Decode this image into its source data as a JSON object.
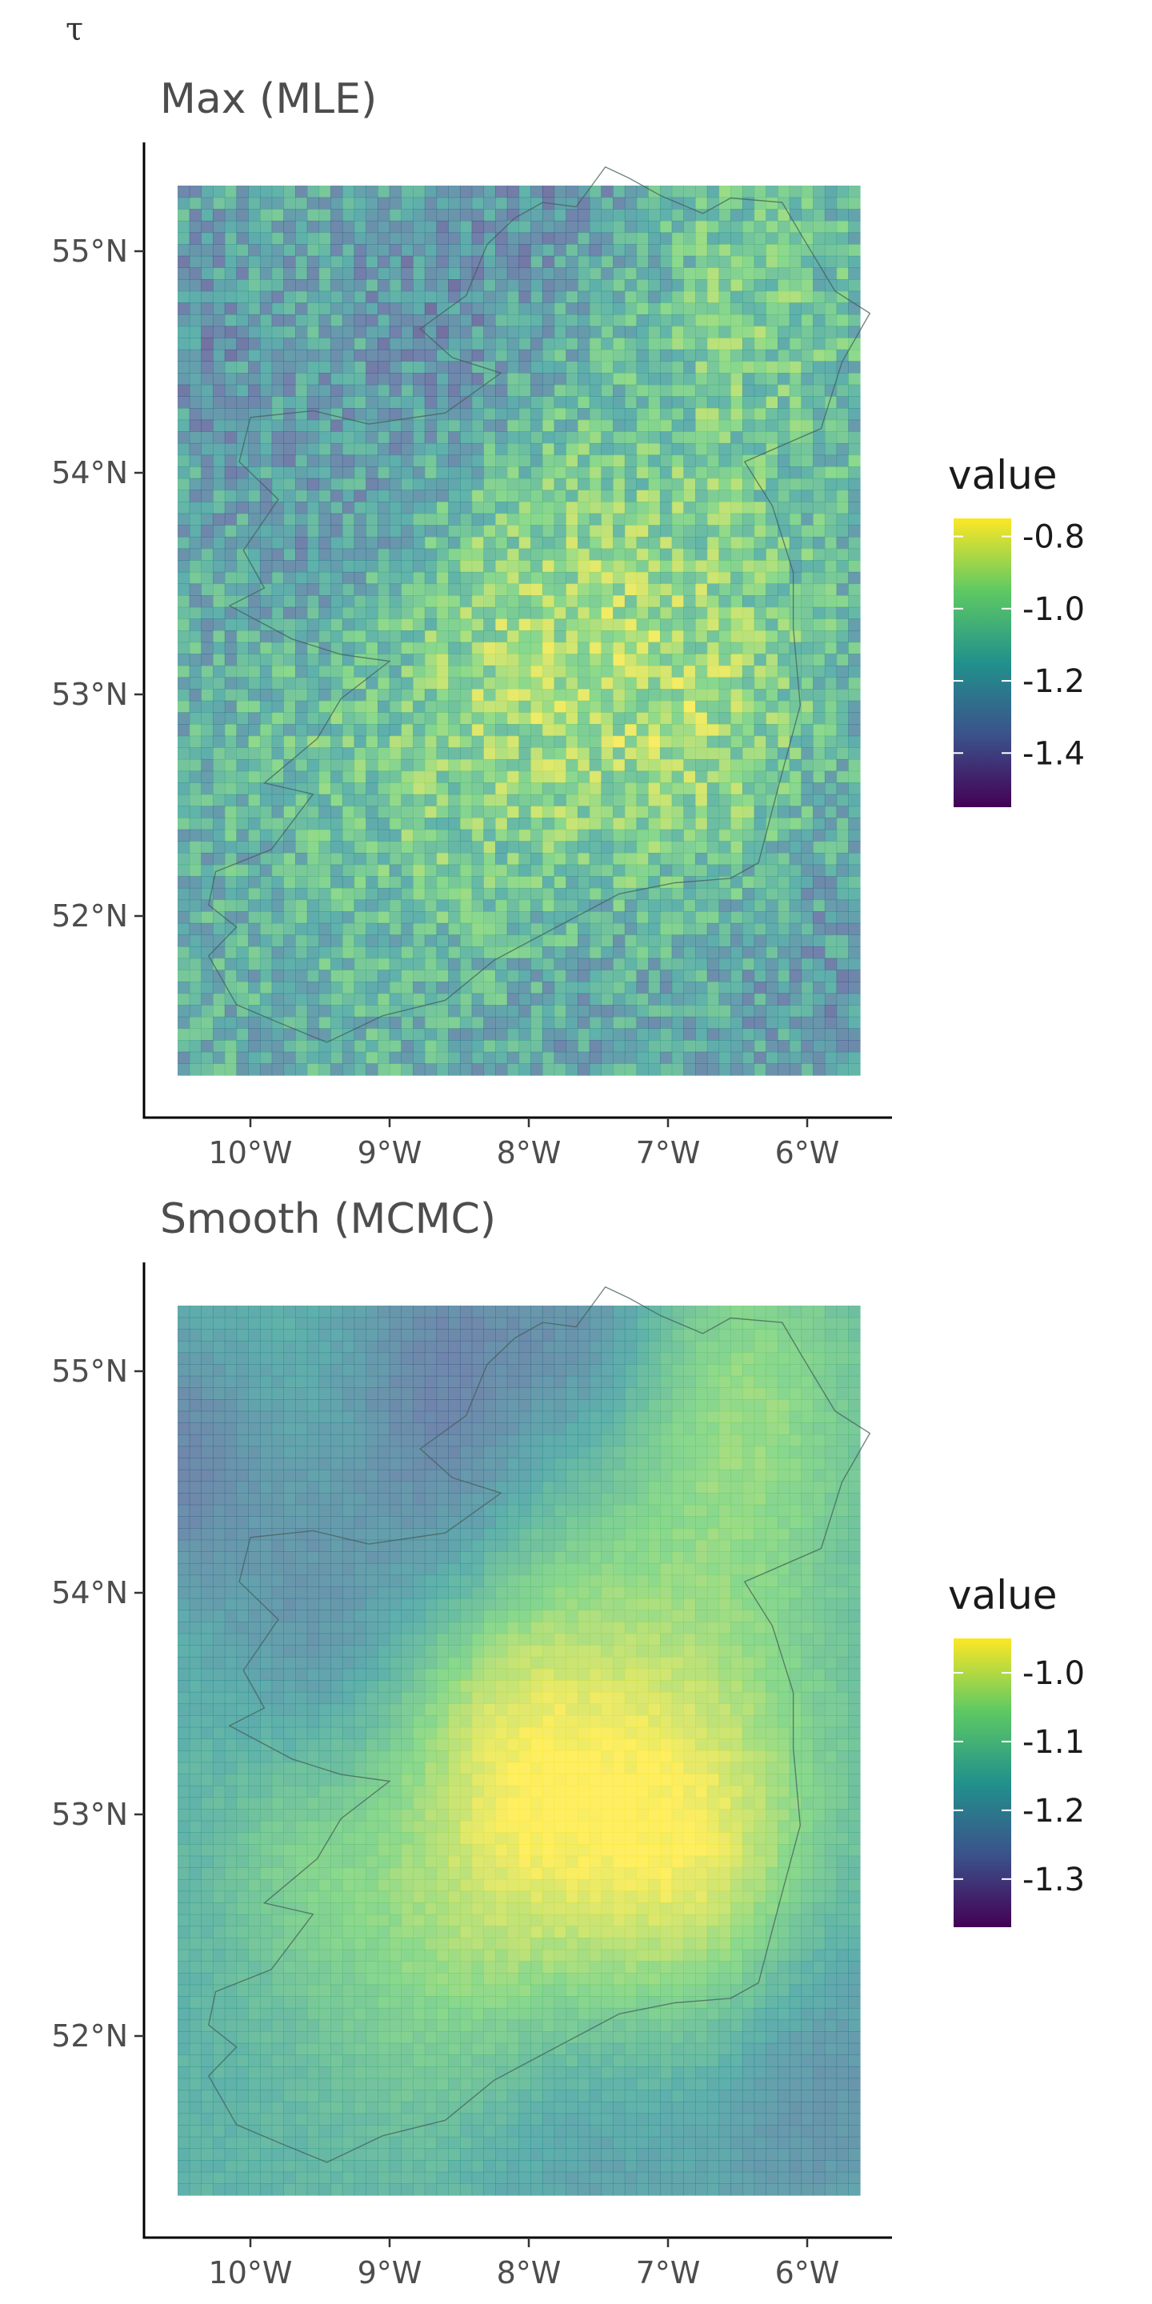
{
  "figure_label": "τ",
  "chart_data": [
    {
      "type": "heatmap",
      "title": "Max (MLE)",
      "x_ticks": [
        "10°W",
        "9°W",
        "8°W",
        "7°W",
        "6°W"
      ],
      "y_ticks": [
        "55°N",
        "54°N",
        "53°N",
        "52°N"
      ],
      "x_range": [
        -10.7,
        -5.3
      ],
      "y_range": [
        51.25,
        55.5
      ],
      "grid": false,
      "legend": {
        "title": "value",
        "position": "right",
        "labels": [
          "-0.8",
          "-1.0",
          "-1.2",
          "-1.4"
        ],
        "values": [
          -0.8,
          -1.0,
          -1.2,
          -1.4
        ],
        "range": [
          -1.55,
          -0.75
        ]
      },
      "colors": [
        "#440154",
        "#3b528b",
        "#21918c",
        "#5ec962",
        "#fde725"
      ],
      "style": "noisy"
    },
    {
      "type": "heatmap",
      "title": "Smooth (MCMC)",
      "x_ticks": [
        "10°W",
        "9°W",
        "8°W",
        "7°W",
        "6°W"
      ],
      "y_ticks": [
        "55°N",
        "54°N",
        "53°N",
        "52°N"
      ],
      "x_range": [
        -10.7,
        -5.3
      ],
      "y_range": [
        51.25,
        55.5
      ],
      "grid": false,
      "legend": {
        "title": "value",
        "position": "right",
        "labels": [
          "-1.0",
          "-1.1",
          "-1.2",
          "-1.3"
        ],
        "values": [
          -1.0,
          -1.1,
          -1.2,
          -1.3
        ],
        "range": [
          -1.37,
          -0.95
        ]
      },
      "colors": [
        "#440154",
        "#3b528b",
        "#21918c",
        "#5ec962",
        "#fde725"
      ],
      "style": "smooth"
    }
  ]
}
